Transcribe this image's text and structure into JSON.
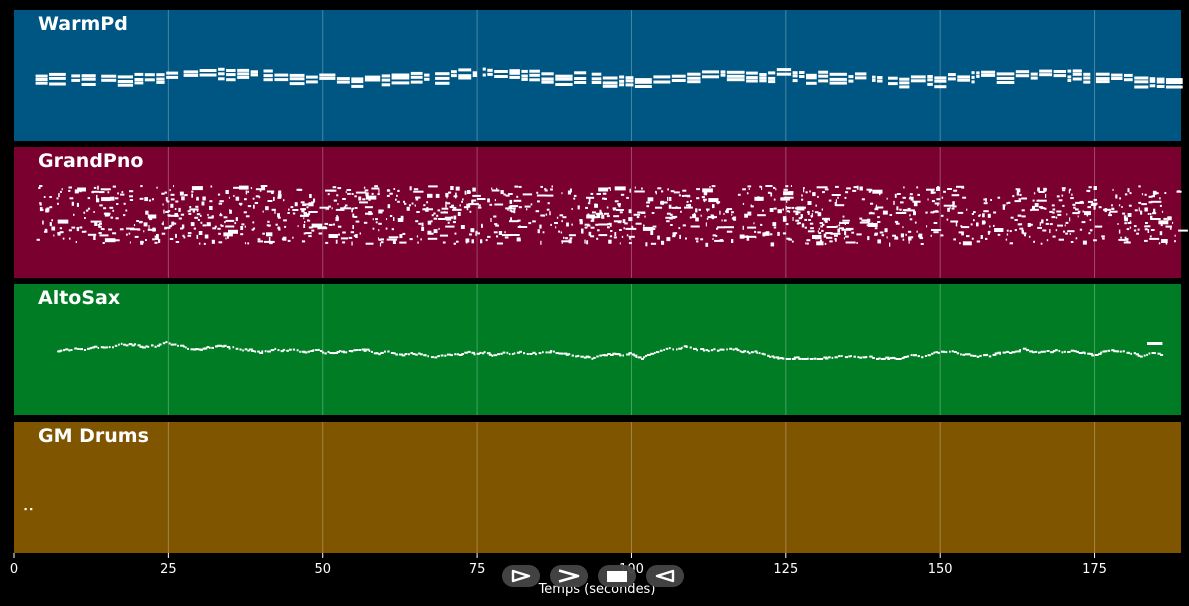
{
  "chart_data": {
    "type": "piano-roll",
    "xlabel": "Temps (secondes)",
    "xlim": [
      0,
      189
    ],
    "x_ticks": [
      0,
      25,
      50,
      75,
      100,
      125,
      150,
      175
    ],
    "grid": true,
    "tracks": [
      {
        "name": "WarmPd",
        "color": "#005682",
        "pitch_range": [
          40,
          80
        ],
        "notes_desc": "sustained chord blocks around the middle register across 0–189 s"
      },
      {
        "name": "GrandPno",
        "color": "#7a0030",
        "pitch_range": [
          30,
          90
        ],
        "notes_desc": "dense scattered chords and runs from ~3 s to ~189 s"
      },
      {
        "name": "AltoSax",
        "color": "#007c24",
        "pitch_range": [
          40,
          80
        ],
        "notes_desc": "melodic line of short notes from ~7 s to ~186 s"
      },
      {
        "name": "GM Drums",
        "color": "#7f5500",
        "pitch_range": [
          30,
          90
        ],
        "notes_desc": "two short hits near 2 s"
      }
    ]
  },
  "player": {
    "buttons": [
      {
        "name": "play-button",
        "icon": "play-icon"
      },
      {
        "name": "forward-button",
        "icon": "forward-icon"
      },
      {
        "name": "stop-button",
        "icon": "stop-icon"
      },
      {
        "name": "back-button",
        "icon": "back-icon"
      }
    ]
  }
}
